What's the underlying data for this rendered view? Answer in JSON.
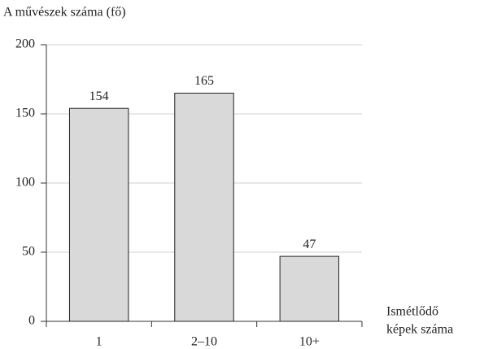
{
  "chart_data": {
    "type": "bar",
    "y_label": "A művészek száma (fő)",
    "x_label": [
      "Ismétlődő",
      "képek száma"
    ],
    "categories": [
      "1",
      "2–10",
      "10+"
    ],
    "values": [
      154,
      165,
      47
    ],
    "color": "#d9d9d9",
    "ylim": [
      0,
      200
    ],
    "yticks": [
      0,
      50,
      100,
      150,
      200
    ],
    "grid": true
  }
}
